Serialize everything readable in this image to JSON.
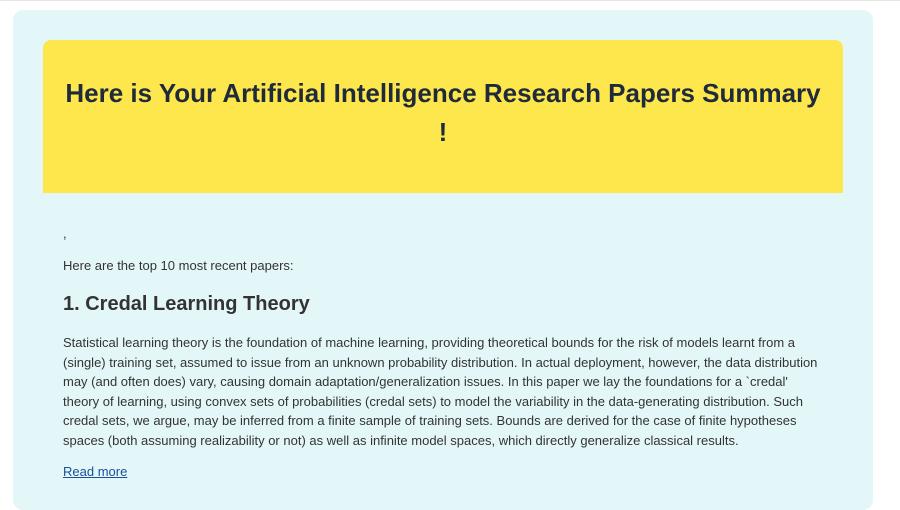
{
  "email": {
    "banner_title": "Here is Your Artificial Intelligence Research Papers Summary !",
    "stray_text": ",",
    "intro": "Here are the top 10 most recent papers:",
    "papers": [
      {
        "title": "1. Credal Learning Theory",
        "abstract": "Statistical learning theory is the foundation of machine learning, providing theoretical bounds for the risk of models learnt from a (single) training set, assumed to issue from an unknown probability distribution. In actual deployment, however, the data distribution may (and often does) vary, causing domain adaptation/generalization issues. In this paper we lay the foundations for a `credal' theory of learning, using convex sets of probabilities (credal sets) to model the variability in the data-generating distribution. Such credal sets, we argue, may be inferred from a finite sample of training sets. Bounds are derived for the case of finite hypotheses spaces (both assuming realizability or not) as well as infinite model spaces, which directly generalize classical results.",
        "link_label": "Read more"
      }
    ]
  },
  "colors": {
    "card_background": "#e4f7f8",
    "banner_background": "#fde74c",
    "banner_text": "#1f2b3a",
    "body_text": "#333333",
    "link": "#1a4f9c"
  }
}
